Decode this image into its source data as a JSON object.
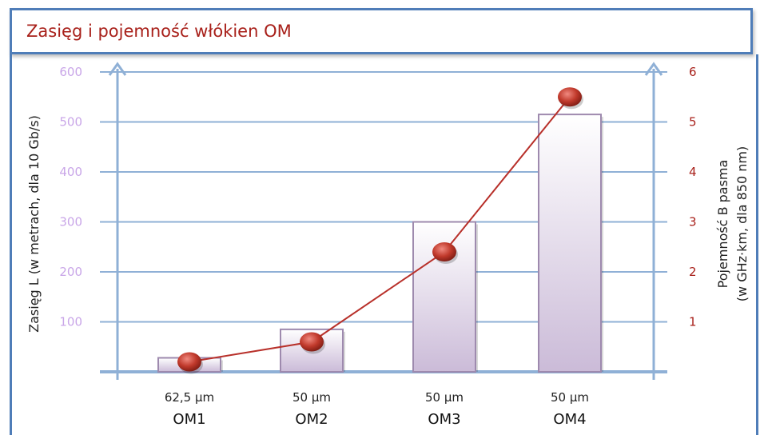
{
  "header": {
    "title": "Zasięg i pojemność włókien OM"
  },
  "chart_data": {
    "type": "bar",
    "categories": [
      "OM1",
      "OM2",
      "OM3",
      "OM4"
    ],
    "category_sublabels": [
      "62,5 µm",
      "50 µm",
      "50 µm",
      "50 µm"
    ],
    "series": [
      {
        "axis": "left",
        "type": "bar",
        "values": [
          28,
          85,
          300,
          515
        ]
      },
      {
        "axis": "right",
        "type": "line",
        "values": [
          0.2,
          0.6,
          2.4,
          5.5
        ]
      }
    ],
    "y_left": {
      "label": "Zasięg L (w metrach, dla 10 Gb/s)",
      "ticks": [
        "100",
        "200",
        "300",
        "400",
        "500",
        "600"
      ],
      "ylim": [
        0,
        600
      ]
    },
    "y_right": {
      "label_line1": "Pojemność B pasma",
      "label_line2": "(w GHz·km, dla 850 nm)",
      "ticks": [
        "1",
        "2",
        "3",
        "4",
        "5",
        "6"
      ],
      "ylim": [
        0,
        6
      ]
    },
    "grid": true,
    "colors": {
      "bar_fill_top": "#ffffff",
      "bar_fill_bottom": "#cbbbd8",
      "bar_stroke": "#9e8aae",
      "line": "#b8302a",
      "marker": "#c0392b",
      "grid": "#8fb0d6",
      "axis": "#8fb0d6"
    }
  }
}
